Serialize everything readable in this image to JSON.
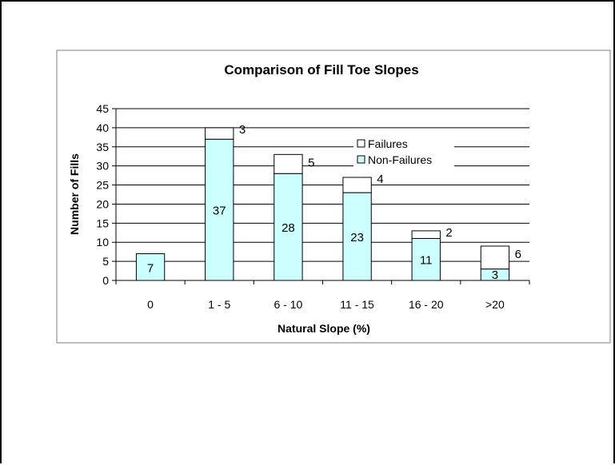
{
  "chart_data": {
    "type": "bar",
    "stacked": true,
    "title": "Comparison of Fill Toe Slopes",
    "xlabel": "Natural Slope (%)",
    "ylabel": "Number of Fills",
    "categories": [
      "0",
      "1 - 5",
      "6 - 10",
      "11 - 15",
      "16 - 20",
      ">20"
    ],
    "ylim": [
      0,
      45
    ],
    "yticks": [
      0,
      5,
      10,
      15,
      20,
      25,
      30,
      35,
      40,
      45
    ],
    "grid": true,
    "legend_position": "right (inside plot)",
    "series": [
      {
        "name": "Non-Failures",
        "values": [
          7,
          37,
          28,
          23,
          11,
          3
        ],
        "color": "#CCFFFF",
        "labels": [
          "7",
          "37",
          "28",
          "23",
          "11",
          "3"
        ]
      },
      {
        "name": "Failures",
        "values": [
          0,
          3,
          5,
          4,
          2,
          6
        ],
        "color": "#FFFFFF",
        "labels": [
          "",
          "3",
          "5",
          "4",
          "2",
          "6"
        ]
      }
    ]
  }
}
